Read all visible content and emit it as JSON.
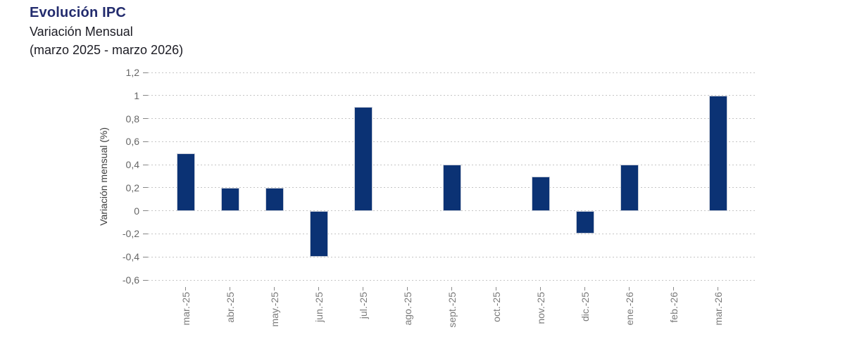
{
  "header": {
    "title": "Evolución IPC",
    "subtitle": "Variación Mensual",
    "range_note": "(marzo 2025 - marzo 2026)"
  },
  "chart_data": {
    "type": "bar",
    "title": "Evolución IPC",
    "subtitle": "Variación Mensual",
    "range_note": "(marzo 2025 - marzo 2026)",
    "ylabel": "Variación mensual (%)",
    "xlabel": "",
    "categories": [
      "mar.-25",
      "abr.-25",
      "may.-25",
      "jun.-25",
      "jul.-25",
      "ago.-25",
      "sept.-25",
      "oct.-25",
      "nov.-25",
      "dic.-25",
      "ene.-26",
      "feb.-26",
      "mar.-26"
    ],
    "values": [
      0.5,
      0.2,
      0.2,
      -0.4,
      0.9,
      0,
      0.4,
      0,
      0.3,
      -0.2,
      0.4,
      0,
      1.0
    ],
    "ylim": [
      -0.6,
      1.2
    ],
    "yticks": [
      {
        "value": 1.2,
        "label": "1,2"
      },
      {
        "value": 1.0,
        "label": "1"
      },
      {
        "value": 0.8,
        "label": "0,8"
      },
      {
        "value": 0.6,
        "label": "0,6"
      },
      {
        "value": 0.4,
        "label": "0,4"
      },
      {
        "value": 0.2,
        "label": "0,2"
      },
      {
        "value": 0.0,
        "label": "0"
      },
      {
        "value": -0.2,
        "label": "-0,2"
      },
      {
        "value": -0.4,
        "label": "-0,4"
      },
      {
        "value": -0.6,
        "label": "-0,6"
      }
    ],
    "grid": "horizontal-dashed",
    "legend": "none",
    "bar_color": "#0b3274",
    "bar_edge_color": "#c9ced9"
  }
}
